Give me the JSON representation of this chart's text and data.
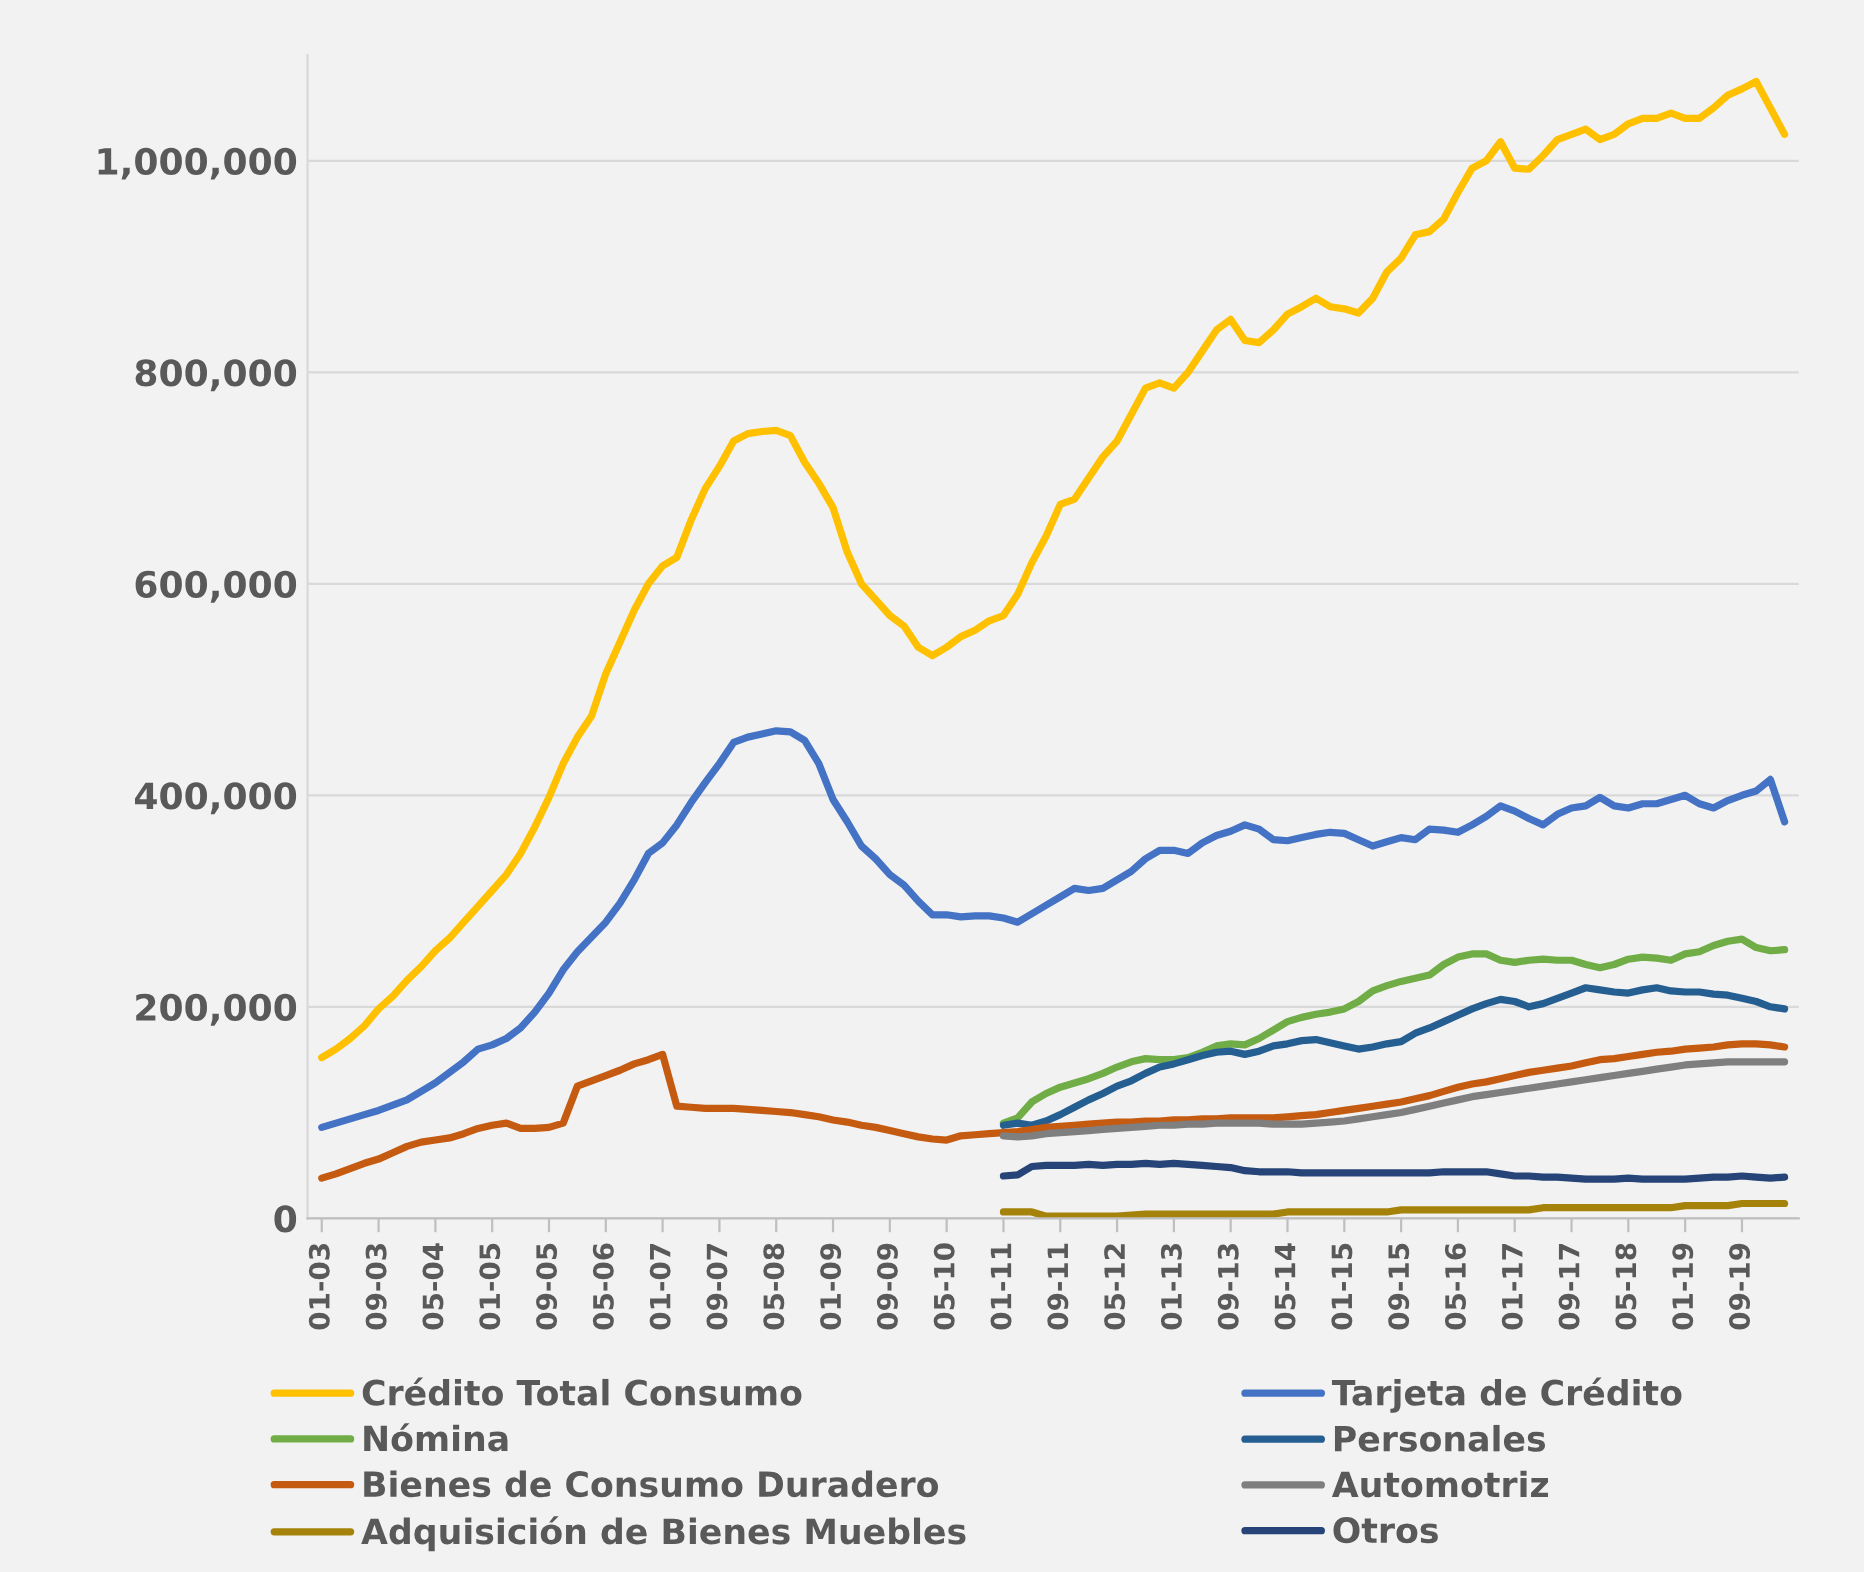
{
  "chart_data": {
    "type": "line",
    "categories": [
      "01-03",
      null,
      null,
      null,
      "09-03",
      null,
      null,
      null,
      "05-04",
      null,
      null,
      null,
      "01-05",
      null,
      null,
      null,
      "09-05",
      null,
      null,
      null,
      "05-06",
      null,
      null,
      null,
      "01-07",
      null,
      null,
      null,
      "09-07",
      null,
      null,
      null,
      "05-08",
      null,
      null,
      null,
      "01-09",
      null,
      null,
      null,
      "09-09",
      null,
      null,
      null,
      "05-10",
      null,
      null,
      null,
      "01-11",
      null,
      null,
      null,
      "09-11",
      null,
      null,
      null,
      "05-12",
      null,
      null,
      null,
      "01-13",
      null,
      null,
      null,
      "09-13",
      null,
      null,
      null,
      "05-14",
      null,
      null,
      null,
      "01-15",
      null,
      null,
      null,
      "09-15",
      null,
      null,
      null,
      "05-16",
      null,
      null,
      null,
      "01-17",
      null,
      null,
      null,
      "09-17",
      null,
      null,
      null,
      "05-18",
      null,
      null,
      null,
      "01-19",
      null,
      null,
      null,
      "09-19",
      null,
      null,
      null
    ],
    "series": [
      {
        "name": "Crédito Total Consumo",
        "color": "#ffc000",
        "values": [
          152000,
          160000,
          170000,
          182000,
          198000,
          210000,
          225000,
          238000,
          253000,
          265000,
          280000,
          295000,
          310000,
          325000,
          345000,
          370000,
          398000,
          430000,
          455000,
          475000,
          515000,
          545000,
          575000,
          600000,
          617000,
          625000,
          660000,
          690000,
          711000,
          735000,
          742000,
          744000,
          745000,
          740000,
          715000,
          695000,
          672000,
          630000,
          600000,
          585000,
          570000,
          560000,
          540000,
          532000,
          540000,
          550000,
          556000,
          565000,
          570000,
          590000,
          620000,
          645000,
          675000,
          680000,
          700000,
          720000,
          735000,
          760000,
          785000,
          790000,
          785000,
          800000,
          820000,
          840000,
          850000,
          830000,
          828000,
          840000,
          855000,
          862000,
          870000,
          862000,
          860000,
          856000,
          870000,
          895000,
          908000,
          930000,
          933000,
          945000,
          970000,
          993000,
          1000000,
          1018000,
          993000,
          992000,
          1005000,
          1020000,
          1025000,
          1030000,
          1020000,
          1025000,
          1035000,
          1040000,
          1040000,
          1045000,
          1040000,
          1040000,
          1050000,
          1062000,
          1068000,
          1075000,
          1050000,
          1025000
        ]
      },
      {
        "name": "Tarjeta de Crédito",
        "color": "#4472c4",
        "values": [
          86000,
          90000,
          94000,
          98000,
          102000,
          107000,
          112000,
          120000,
          128000,
          138000,
          148000,
          160000,
          164000,
          170000,
          180000,
          195000,
          213000,
          235000,
          252000,
          266000,
          280000,
          298000,
          320000,
          345000,
          355000,
          372000,
          393000,
          412000,
          430000,
          450000,
          455000,
          458000,
          461000,
          460000,
          452000,
          430000,
          396000,
          375000,
          352000,
          340000,
          325000,
          315000,
          300000,
          287000,
          287000,
          285000,
          286000,
          286000,
          284000,
          280000,
          288000,
          296000,
          304000,
          312000,
          310000,
          312000,
          320000,
          328000,
          340000,
          348000,
          348000,
          345000,
          355000,
          362000,
          366000,
          372000,
          368000,
          358000,
          357000,
          360000,
          363000,
          365000,
          364000,
          358000,
          352000,
          356000,
          360000,
          358000,
          368000,
          367000,
          365000,
          372000,
          380000,
          390000,
          385000,
          378000,
          372000,
          382000,
          388000,
          390000,
          398000,
          390000,
          388000,
          392000,
          392000,
          396000,
          400000,
          392000,
          388000,
          395000,
          400000,
          404000,
          415000,
          375000
        ]
      },
      {
        "name": "Nómina",
        "color": "#70ad47",
        "values": [
          null,
          null,
          null,
          null,
          null,
          null,
          null,
          null,
          null,
          null,
          null,
          null,
          null,
          null,
          null,
          null,
          null,
          null,
          null,
          null,
          null,
          null,
          null,
          null,
          null,
          null,
          null,
          null,
          null,
          null,
          null,
          null,
          null,
          null,
          null,
          null,
          null,
          null,
          null,
          null,
          null,
          null,
          null,
          null,
          null,
          null,
          null,
          null,
          90000,
          95000,
          110000,
          118000,
          124000,
          128000,
          132000,
          137000,
          143000,
          148000,
          151000,
          150000,
          150000,
          152000,
          157000,
          163000,
          165000,
          164000,
          170000,
          178000,
          186000,
          190000,
          193000,
          195000,
          198000,
          205000,
          215000,
          220000,
          224000,
          227000,
          230000,
          240000,
          247000,
          250000,
          250000,
          244000,
          242000,
          244000,
          245000,
          244000,
          244000,
          240000,
          237000,
          240000,
          245000,
          247000,
          246000,
          244000,
          250000,
          252000,
          258000,
          262000,
          264000,
          256000,
          253000,
          254000
        ]
      },
      {
        "name": "Personales",
        "color": "#255e91",
        "values": [
          null,
          null,
          null,
          null,
          null,
          null,
          null,
          null,
          null,
          null,
          null,
          null,
          null,
          null,
          null,
          null,
          null,
          null,
          null,
          null,
          null,
          null,
          null,
          null,
          null,
          null,
          null,
          null,
          null,
          null,
          null,
          null,
          null,
          null,
          null,
          null,
          null,
          null,
          null,
          null,
          null,
          null,
          null,
          null,
          null,
          null,
          null,
          null,
          88000,
          90000,
          88000,
          92000,
          98000,
          105000,
          112000,
          118000,
          125000,
          130000,
          137000,
          143000,
          146000,
          150000,
          154000,
          157000,
          158000,
          155000,
          158000,
          163000,
          165000,
          168000,
          169000,
          166000,
          163000,
          160000,
          162000,
          165000,
          167000,
          175000,
          180000,
          186000,
          192000,
          198000,
          203000,
          207000,
          205000,
          200000,
          203000,
          208000,
          213000,
          218000,
          216000,
          214000,
          213000,
          216000,
          218000,
          215000,
          214000,
          214000,
          212000,
          211000,
          208000,
          205000,
          200000,
          198000
        ]
      },
      {
        "name": "Bienes de Consumo Duradero",
        "color": "#c55a11",
        "values": [
          38000,
          42000,
          47000,
          52000,
          56000,
          62000,
          68000,
          72000,
          74000,
          76000,
          80000,
          85000,
          88000,
          90000,
          85000,
          85000,
          86000,
          90000,
          125000,
          130000,
          135000,
          140000,
          146000,
          150000,
          155000,
          106000,
          105000,
          104000,
          104000,
          104000,
          103000,
          102000,
          101000,
          100000,
          98000,
          96000,
          93000,
          91000,
          88000,
          86000,
          83000,
          80000,
          77000,
          75000,
          74000,
          78000,
          79000,
          80000,
          81000,
          82000,
          84000,
          86000,
          87000,
          88000,
          89000,
          90000,
          91000,
          91000,
          92000,
          92000,
          93000,
          93000,
          94000,
          94000,
          95000,
          95000,
          95000,
          95000,
          96000,
          97000,
          98000,
          100000,
          102000,
          104000,
          106000,
          108000,
          110000,
          113000,
          116000,
          120000,
          124000,
          127000,
          129000,
          132000,
          135000,
          138000,
          140000,
          142000,
          144000,
          147000,
          150000,
          151000,
          153000,
          155000,
          157000,
          158000,
          160000,
          161000,
          162000,
          164000,
          165000,
          165000,
          164000,
          162000
        ]
      },
      {
        "name": "Automotriz",
        "color": "#7f7f7f",
        "values": [
          null,
          null,
          null,
          null,
          null,
          null,
          null,
          null,
          null,
          null,
          null,
          null,
          null,
          null,
          null,
          null,
          null,
          null,
          null,
          null,
          null,
          null,
          null,
          null,
          null,
          null,
          null,
          null,
          null,
          null,
          null,
          null,
          null,
          null,
          null,
          null,
          null,
          null,
          null,
          null,
          null,
          null,
          null,
          null,
          null,
          null,
          null,
          null,
          78000,
          77000,
          78000,
          80000,
          81000,
          82000,
          83000,
          84000,
          85000,
          86000,
          87000,
          88000,
          88000,
          89000,
          89000,
          90000,
          90000,
          90000,
          90000,
          89000,
          89000,
          89000,
          90000,
          91000,
          92000,
          94000,
          96000,
          98000,
          100000,
          103000,
          106000,
          109000,
          112000,
          115000,
          117000,
          119000,
          121000,
          123000,
          125000,
          127000,
          129000,
          131000,
          133000,
          135000,
          137000,
          139000,
          141000,
          143000,
          145000,
          146000,
          147000,
          148000,
          148000,
          148000,
          148000,
          148000
        ]
      },
      {
        "name": "Adquisición de Bienes Muebles",
        "color": "#a5820a",
        "values": [
          null,
          null,
          null,
          null,
          null,
          null,
          null,
          null,
          null,
          null,
          null,
          null,
          null,
          null,
          null,
          null,
          null,
          null,
          null,
          null,
          null,
          null,
          null,
          null,
          null,
          null,
          null,
          null,
          null,
          null,
          null,
          null,
          null,
          null,
          null,
          null,
          null,
          null,
          null,
          null,
          null,
          null,
          null,
          null,
          null,
          null,
          null,
          null,
          6000,
          6000,
          6000,
          2000,
          2000,
          2000,
          2000,
          2000,
          2000,
          3000,
          4000,
          4000,
          4000,
          4000,
          4000,
          4000,
          4000,
          4000,
          4000,
          4000,
          6000,
          6000,
          6000,
          6000,
          6000,
          6000,
          6000,
          6000,
          8000,
          8000,
          8000,
          8000,
          8000,
          8000,
          8000,
          8000,
          8000,
          8000,
          10000,
          10000,
          10000,
          10000,
          10000,
          10000,
          10000,
          10000,
          10000,
          10000,
          12000,
          12000,
          12000,
          12000,
          14000,
          14000,
          14000,
          14000
        ]
      },
      {
        "name": "Otros",
        "color": "#264478",
        "values": [
          null,
          null,
          null,
          null,
          null,
          null,
          null,
          null,
          null,
          null,
          null,
          null,
          null,
          null,
          null,
          null,
          null,
          null,
          null,
          null,
          null,
          null,
          null,
          null,
          null,
          null,
          null,
          null,
          null,
          null,
          null,
          null,
          null,
          null,
          null,
          null,
          null,
          null,
          null,
          null,
          null,
          null,
          null,
          null,
          null,
          null,
          null,
          null,
          40000,
          41000,
          49000,
          50000,
          50000,
          50000,
          51000,
          50000,
          51000,
          51000,
          52000,
          51000,
          52000,
          51000,
          50000,
          49000,
          48000,
          45000,
          44000,
          44000,
          44000,
          43000,
          43000,
          43000,
          43000,
          43000,
          43000,
          43000,
          43000,
          43000,
          43000,
          44000,
          44000,
          44000,
          44000,
          42000,
          40000,
          40000,
          39000,
          39000,
          38000,
          37000,
          37000,
          37000,
          38000,
          37000,
          37000,
          37000,
          37000,
          38000,
          39000,
          39000,
          40000,
          39000,
          38000,
          39000
        ]
      }
    ],
    "ylim": [
      0,
      1100000
    ],
    "yticks": [
      {
        "value": 0,
        "label": "0"
      },
      {
        "value": 200000,
        "label": "200,000"
      },
      {
        "value": 400000,
        "label": "400,000"
      },
      {
        "value": 600000,
        "label": "600,000"
      },
      {
        "value": 800000,
        "label": "800,000"
      },
      {
        "value": 1000000,
        "label": "1,000,000"
      }
    ],
    "grid": "y",
    "legend": "bottom",
    "marker": "none",
    "line_style": "solid"
  }
}
